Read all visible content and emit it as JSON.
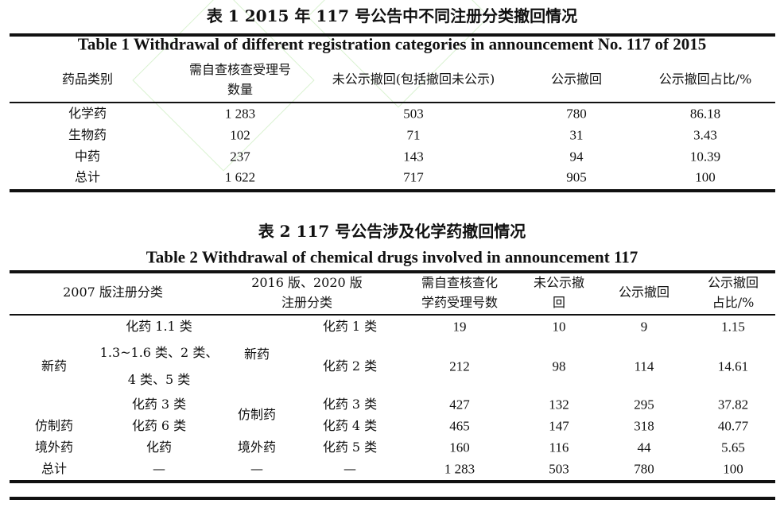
{
  "table1": {
    "title_cn": "表 1   2015 年 117 号公告中不同注册分类撤回情况",
    "title_en": "Table 1   Withdrawal of different registration categories in announcement No. 117 of 2015",
    "headers": [
      "药品类别",
      "需自查核查受理号",
      "数量",
      "未公示撤回(包括撤回未公示)",
      "公示撤回",
      "公示撤回占比/%"
    ],
    "rows": [
      [
        "化学药",
        "1 283",
        "503",
        "780",
        "86.18"
      ],
      [
        "生物药",
        "102",
        "71",
        "31",
        "3.43"
      ],
      [
        "中药",
        "237",
        "143",
        "94",
        "10.39"
      ],
      [
        "总计",
        "1 622",
        "717",
        "905",
        "100"
      ]
    ]
  },
  "table2": {
    "title_cn": "表 2   117 号公告涉及化学药撤回情况",
    "title_en": "Table 2   Withdrawal of chemical drugs involved in announcement 117",
    "headers": [
      "2007 版注册分类",
      "2016 版、2020 版",
      "注册分类",
      "需自查核查化",
      "学药受理号数",
      "未公示撤",
      "回",
      "公示撤回",
      "公示撤回",
      "占比/%"
    ],
    "groups_2007": [
      "新药",
      "仿制药",
      "境外药",
      "总计"
    ],
    "sub_2007": [
      "化药 1.1 类",
      "1.3~1.6 类、2 类、",
      "4 类、5 类",
      "化药 3 类",
      "化药 6 类",
      "化药",
      "—"
    ],
    "groups_2016": [
      "新药",
      "仿制药",
      "境外药",
      "—"
    ],
    "sub_2016": [
      "化药 1 类",
      "化药 2 类",
      "化药 3 类",
      "化药 4 类",
      "化药 5 类",
      "—"
    ],
    "values": [
      [
        "19",
        "10",
        "9",
        "1.15"
      ],
      [
        "212",
        "98",
        "114",
        "14.61"
      ],
      [
        "427",
        "132",
        "295",
        "37.82"
      ],
      [
        "465",
        "147",
        "318",
        "40.77"
      ],
      [
        "160",
        "116",
        "44",
        "5.65"
      ],
      [
        "1 283",
        "503",
        "780",
        "100"
      ]
    ]
  }
}
